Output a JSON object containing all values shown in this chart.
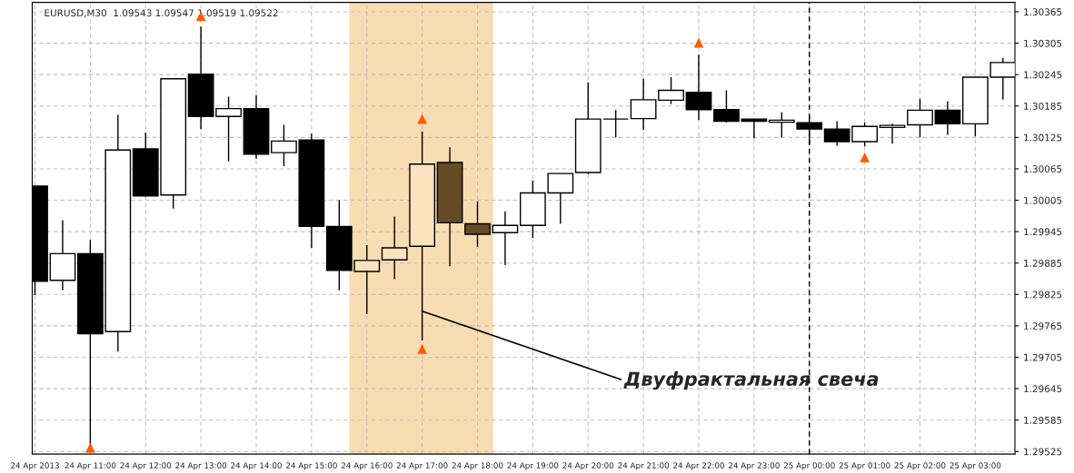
{
  "chart_data": {
    "type": "candlestick",
    "title": "EURUSD,M30  1.09543 1.09547 1.09519 1.09522",
    "x": [
      "2013-04-24T10:00",
      "2013-04-24T10:30",
      "2013-04-24T11:00",
      "2013-04-24T11:30",
      "2013-04-24T12:00",
      "2013-04-24T12:30",
      "2013-04-24T13:00",
      "2013-04-24T13:30",
      "2013-04-24T14:00",
      "2013-04-24T14:30",
      "2013-04-24T15:00",
      "2013-04-24T15:30",
      "2013-04-24T16:00",
      "2013-04-24T16:30",
      "2013-04-24T17:00",
      "2013-04-24T17:30",
      "2013-04-24T18:00",
      "2013-04-24T18:30",
      "2013-04-24T19:00",
      "2013-04-24T19:30",
      "2013-04-24T20:00",
      "2013-04-24T20:30",
      "2013-04-24T21:00",
      "2013-04-24T21:30",
      "2013-04-24T22:00",
      "2013-04-24T22:30",
      "2013-04-24T23:00",
      "2013-04-24T23:30",
      "2013-04-25T00:00",
      "2013-04-25T00:30",
      "2013-04-25T01:00",
      "2013-04-25T01:30",
      "2013-04-25T02:00",
      "2013-04-25T02:30",
      "2013-04-25T03:00",
      "2013-04-25T03:30"
    ],
    "ohlc": [
      [
        1.30032,
        1.30032,
        1.29824,
        1.2985
      ],
      [
        1.29852,
        1.29967,
        1.29833,
        1.29903
      ],
      [
        1.29903,
        1.29929,
        1.29536,
        1.2975
      ],
      [
        1.29754,
        1.30168,
        1.29716,
        1.30101
      ],
      [
        1.30103,
        1.30134,
        1.30012,
        1.30013
      ],
      [
        1.30015,
        1.30237,
        1.29989,
        1.30237
      ],
      [
        1.30246,
        1.30337,
        1.30141,
        1.30165
      ],
      [
        1.30165,
        1.30203,
        1.30079,
        1.3018
      ],
      [
        1.3018,
        1.30206,
        1.30084,
        1.30093
      ],
      [
        1.30096,
        1.30149,
        1.3007,
        1.30118
      ],
      [
        1.3012,
        1.30132,
        1.29914,
        1.29955
      ],
      [
        1.29955,
        1.30005,
        1.29833,
        1.29871
      ],
      [
        1.29869,
        1.29919,
        1.29788,
        1.2989
      ],
      [
        1.29891,
        1.29974,
        1.29854,
        1.29914
      ],
      [
        1.29917,
        1.30136,
        1.29737,
        1.30074
      ],
      [
        1.30077,
        1.30106,
        1.29879,
        1.29962
      ],
      [
        1.2996,
        1.30003,
        1.29916,
        1.2994
      ],
      [
        1.29943,
        1.29984,
        1.29881,
        1.29957
      ],
      [
        1.29957,
        1.30043,
        1.29933,
        1.30019
      ],
      [
        1.30019,
        1.30056,
        1.2996,
        1.30056
      ],
      [
        1.30058,
        1.3023,
        1.30055,
        1.3016
      ],
      [
        1.3016,
        1.30177,
        1.30125,
        1.3016
      ],
      [
        1.30161,
        1.30237,
        1.30139,
        1.30197
      ],
      [
        1.30196,
        1.3024,
        1.30189,
        1.30215
      ],
      [
        1.30211,
        1.30283,
        1.30158,
        1.30178
      ],
      [
        1.30178,
        1.30215,
        1.30154,
        1.30156
      ],
      [
        1.3016,
        1.3016,
        1.30123,
        1.30156
      ],
      [
        1.30154,
        1.30173,
        1.30125,
        1.30158
      ],
      [
        1.30153,
        1.30166,
        1.30111,
        1.30141
      ],
      [
        1.30141,
        1.30156,
        1.30109,
        1.30117
      ],
      [
        1.30117,
        1.30154,
        1.30108,
        1.30146
      ],
      [
        1.30144,
        1.30151,
        1.30113,
        1.30148
      ],
      [
        1.30149,
        1.30199,
        1.30125,
        1.30177
      ],
      [
        1.30177,
        1.30194,
        1.3013,
        1.30151
      ],
      [
        1.30151,
        1.3024,
        1.30127,
        1.3024
      ],
      [
        1.3024,
        1.30277,
        1.30197,
        1.30268
      ]
    ],
    "colors": [
      "#000000",
      "#ffffff",
      "#000000",
      "#ffffff",
      "#000000",
      "#ffffff",
      "#000000",
      "#ffffff",
      "#000000",
      "#ffffff",
      "#000000",
      "#000000",
      "#fbe3c0",
      "#fbe3c0",
      "#fbe3c0",
      "#654b24",
      "#654b24",
      "#ffffff",
      "#ffffff",
      "#ffffff",
      "#ffffff",
      "#000000",
      "#ffffff",
      "#ffffff",
      "#000000",
      "#000000",
      "#000000",
      "#ffffff",
      "#000000",
      "#000000",
      "#ffffff",
      "#ffffff",
      "#ffffff",
      "#000000",
      "#ffffff",
      "#ffffff"
    ],
    "series": [
      {
        "type": "scatter",
        "color": "#ff5a00",
        "marker": "triangle",
        "x": [
          "2013-04-24T11:00",
          "2013-04-24T13:00",
          "2013-04-24T17:00",
          "2013-04-24T17:00",
          "2013-04-24T22:00",
          "2013-04-25T01:00"
        ],
        "values": [
          1.29532,
          1.30357,
          1.3016,
          1.29721,
          1.30306,
          1.30087
        ]
      }
    ],
    "bands": [
      {
        "axis": "x",
        "from": "2013-04-24T15:41",
        "to": "2013-04-24T18:17",
        "color": "#f8dcb2"
      }
    ],
    "ref_lines": [
      {
        "axis": "x",
        "value": "2013-04-25T00:00",
        "color": "#000000",
        "line_style": "dashed"
      }
    ],
    "annotations": [
      {
        "text": "Двуфрактальная свеча",
        "x": "2013-04-24T17:00",
        "y": 1.29793
      }
    ],
    "xlim": [
      "2013-04-24T09:57",
      "2013-04-25T03:43"
    ],
    "xticks": [
      {
        "value": "2013-04-24T10:00",
        "label": "24 Apr 2013"
      },
      {
        "value": "2013-04-24T11:00",
        "label": "24 Apr 11:00"
      },
      {
        "value": "2013-04-24T12:00",
        "label": "24 Apr 12:00"
      },
      {
        "value": "2013-04-24T13:00",
        "label": "24 Apr 13:00"
      },
      {
        "value": "2013-04-24T14:00",
        "label": "24 Apr 14:00"
      },
      {
        "value": "2013-04-24T15:00",
        "label": "24 Apr 15:00"
      },
      {
        "value": "2013-04-24T16:00",
        "label": "24 Apr 16:00"
      },
      {
        "value": "2013-04-24T17:00",
        "label": "24 Apr 17:00"
      },
      {
        "value": "2013-04-24T18:00",
        "label": "24 Apr 18:00"
      },
      {
        "value": "2013-04-24T19:00",
        "label": "24 Apr 19:00"
      },
      {
        "value": "2013-04-24T20:00",
        "label": "24 Apr 20:00"
      },
      {
        "value": "2013-04-24T21:00",
        "label": "24 Apr 21:00"
      },
      {
        "value": "2013-04-24T22:00",
        "label": "24 Apr 22:00"
      },
      {
        "value": "2013-04-24T23:00",
        "label": "24 Apr 23:00"
      },
      {
        "value": "2013-04-25T00:00",
        "label": "25 Apr 00:00"
      },
      {
        "value": "2013-04-25T01:00",
        "label": "25 Apr 01:00"
      },
      {
        "value": "2013-04-25T02:00",
        "label": "25 Apr 02:00"
      },
      {
        "value": "2013-04-25T03:00",
        "label": "25 Apr 03:00"
      }
    ],
    "ylim": [
      1.2952,
      1.30383
    ],
    "yticks": [
      1.29525,
      1.29585,
      1.29645,
      1.29705,
      1.29765,
      1.29825,
      1.29885,
      1.29945,
      1.30005,
      1.30065,
      1.30125,
      1.30185,
      1.30245,
      1.30305,
      1.30365
    ],
    "grid": true,
    "legend": false
  }
}
